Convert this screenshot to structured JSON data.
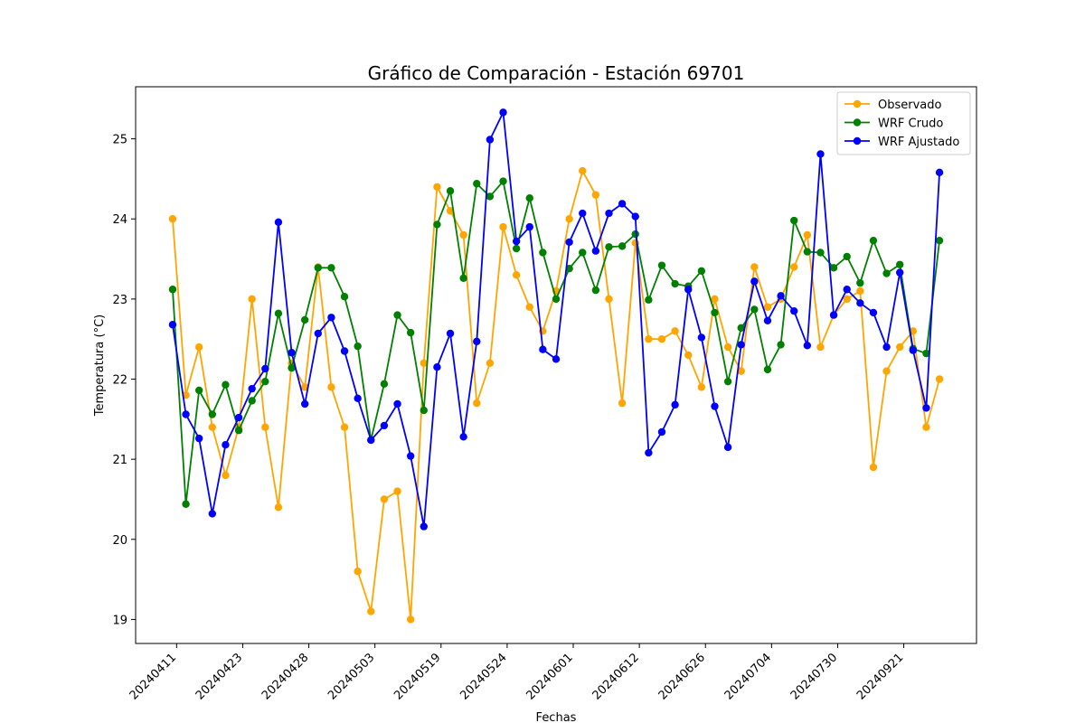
{
  "chart_data": {
    "type": "line",
    "title": "Gráfico de Comparación - Estación 69701",
    "xlabel": "Fechas",
    "ylabel": "Temperatura (°C)",
    "ylim": [
      18.7,
      25.65
    ],
    "yticks": [
      19,
      20,
      21,
      22,
      23,
      24,
      25
    ],
    "xtick_labels": [
      "20240411",
      "20240423",
      "20240428",
      "20240503",
      "20240519",
      "20240524",
      "20240601",
      "20240612",
      "20240626",
      "20240704",
      "20240730",
      "20240921"
    ],
    "xtick_positions": [
      0.3,
      5.3,
      10.3,
      15.3,
      20.3,
      25.3,
      30.3,
      35.3,
      40.3,
      45.3,
      50.3,
      55.3
    ],
    "xlim": [
      -2.8,
      60.8
    ],
    "grid": false,
    "legend_position": "top-right",
    "series": [
      {
        "name": "Observado",
        "color": "#ffa500",
        "values": [
          24.0,
          21.8,
          22.4,
          21.4,
          20.8,
          21.4,
          23.0,
          21.4,
          20.4,
          22.2,
          21.9,
          23.4,
          21.9,
          21.4,
          19.6,
          19.1,
          20.5,
          20.6,
          19.0,
          22.2,
          24.4,
          24.1,
          23.8,
          21.7,
          22.2,
          23.9,
          23.3,
          22.9,
          22.6,
          23.1,
          24.0,
          24.6,
          24.3,
          23.0,
          21.7,
          23.7,
          22.5,
          22.5,
          22.6,
          22.3,
          21.9,
          23.0,
          22.4,
          22.1,
          23.4,
          22.9,
          23.0,
          23.4,
          23.8,
          22.4,
          22.8,
          23.0,
          23.1,
          20.9,
          22.1,
          22.4,
          22.6,
          21.4,
          22.0
        ]
      },
      {
        "name": "WRF Crudo",
        "color": "#008000",
        "values": [
          23.12,
          20.44,
          21.86,
          21.56,
          21.93,
          21.36,
          21.73,
          21.97,
          22.82,
          22.14,
          22.74,
          23.39,
          23.39,
          23.03,
          22.41,
          21.24,
          21.94,
          22.8,
          22.58,
          21.61,
          23.93,
          24.35,
          23.26,
          24.44,
          24.28,
          24.47,
          23.63,
          24.26,
          23.58,
          23.0,
          23.38,
          23.58,
          23.11,
          23.65,
          23.66,
          23.81,
          22.99,
          23.42,
          23.19,
          23.16,
          23.35,
          22.83,
          21.97,
          22.64,
          22.87,
          22.12,
          22.43,
          23.98,
          23.59,
          23.58,
          23.39,
          23.53,
          23.2,
          23.73,
          23.32,
          23.43,
          22.38,
          22.32,
          23.73
        ]
      },
      {
        "name": "WRF Ajustado",
        "color": "#0000ff",
        "values": [
          22.68,
          21.56,
          21.26,
          20.32,
          21.18,
          21.52,
          21.88,
          22.13,
          23.96,
          22.33,
          21.69,
          22.57,
          22.77,
          22.35,
          21.76,
          21.24,
          21.42,
          21.69,
          21.04,
          20.16,
          22.15,
          22.57,
          21.28,
          22.47,
          24.99,
          25.33,
          23.72,
          23.9,
          22.37,
          22.25,
          23.71,
          24.07,
          23.6,
          24.07,
          24.19,
          24.03,
          21.08,
          21.34,
          21.68,
          23.12,
          22.52,
          21.66,
          21.15,
          22.43,
          23.22,
          22.73,
          23.04,
          22.85,
          22.42,
          24.81,
          22.8,
          23.12,
          22.95,
          22.83,
          22.4,
          23.33,
          22.36,
          21.64,
          24.58
        ]
      }
    ]
  }
}
